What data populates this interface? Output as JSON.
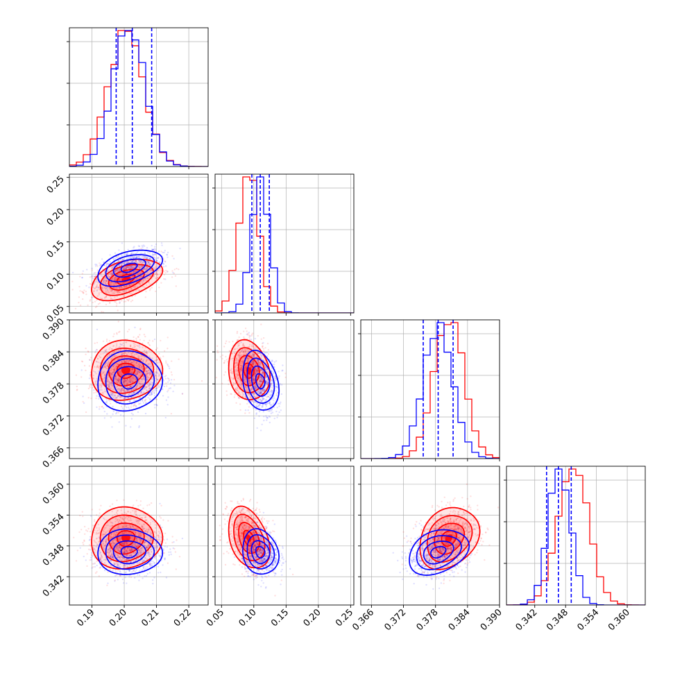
{
  "chart_data": {
    "type": "corner",
    "grid": true,
    "colors": {
      "series_a": "#ff0000",
      "series_b": "#0000ff",
      "quantile_lines": "#0000ff"
    },
    "series": [
      {
        "color": "#ff0000",
        "style": "filled-contours"
      },
      {
        "color": "#0000ff",
        "style": "line-contours"
      }
    ],
    "parameters": [
      {
        "range": [
          0.183,
          0.226
        ],
        "ticks": [
          0.19,
          0.2,
          0.21,
          0.22
        ],
        "tick_labels": [
          "0.19",
          "0.20",
          "0.21",
          "0.22"
        ],
        "quantiles": [
          0.1975,
          0.2025,
          0.2085
        ],
        "mean": {
          "red": 0.2005,
          "blue": 0.2015
        },
        "sd": {
          "red": 0.0055,
          "blue": 0.005
        }
      },
      {
        "range": [
          0.04,
          0.255
        ],
        "ticks": [
          0.05,
          0.1,
          0.15,
          0.2,
          0.25
        ],
        "tick_labels": [
          "0.05",
          "0.10",
          "0.15",
          "0.20",
          "0.25"
        ],
        "quantiles": [
          0.097,
          0.11,
          0.124
        ],
        "mean": {
          "red": 0.092,
          "blue": 0.11
        },
        "sd": {
          "red": 0.016,
          "blue": 0.014
        }
      },
      {
        "range": [
          0.364,
          0.39
        ],
        "ticks": [
          0.366,
          0.372,
          0.378,
          0.384,
          0.39
        ],
        "tick_labels": [
          "0.366",
          "0.372",
          "0.378",
          "0.384",
          "0.390"
        ],
        "quantiles": [
          0.3757,
          0.3785,
          0.3813
        ],
        "mean": {
          "red": 0.3805,
          "blue": 0.3785
        },
        "sd": {
          "red": 0.0028,
          "blue": 0.0028
        }
      },
      {
        "range": [
          0.3365,
          0.3635
        ],
        "ticks": [
          0.342,
          0.348,
          0.354,
          0.36
        ],
        "tick_labels": [
          "0.342",
          "0.348",
          "0.354",
          "0.360"
        ],
        "quantiles": [
          0.3443,
          0.3466,
          0.3491
        ],
        "mean": {
          "red": 0.3495,
          "blue": 0.3468
        },
        "sd": {
          "red": 0.003,
          "blue": 0.0022
        }
      }
    ],
    "correlations": {
      "red": {
        "1-0": 0.45,
        "2-0": 0.05,
        "3-0": 0.05,
        "2-1": -0.15,
        "3-1": -0.35,
        "3-2": 0.25
      },
      "blue": {
        "1-0": 0.45,
        "2-0": 0.05,
        "3-0": 0.0,
        "2-1": -0.25,
        "3-1": -0.15,
        "3-2": 0.3
      }
    },
    "contour_levels_sigma": [
      0.5,
      1.0,
      1.5,
      2.0
    ]
  }
}
